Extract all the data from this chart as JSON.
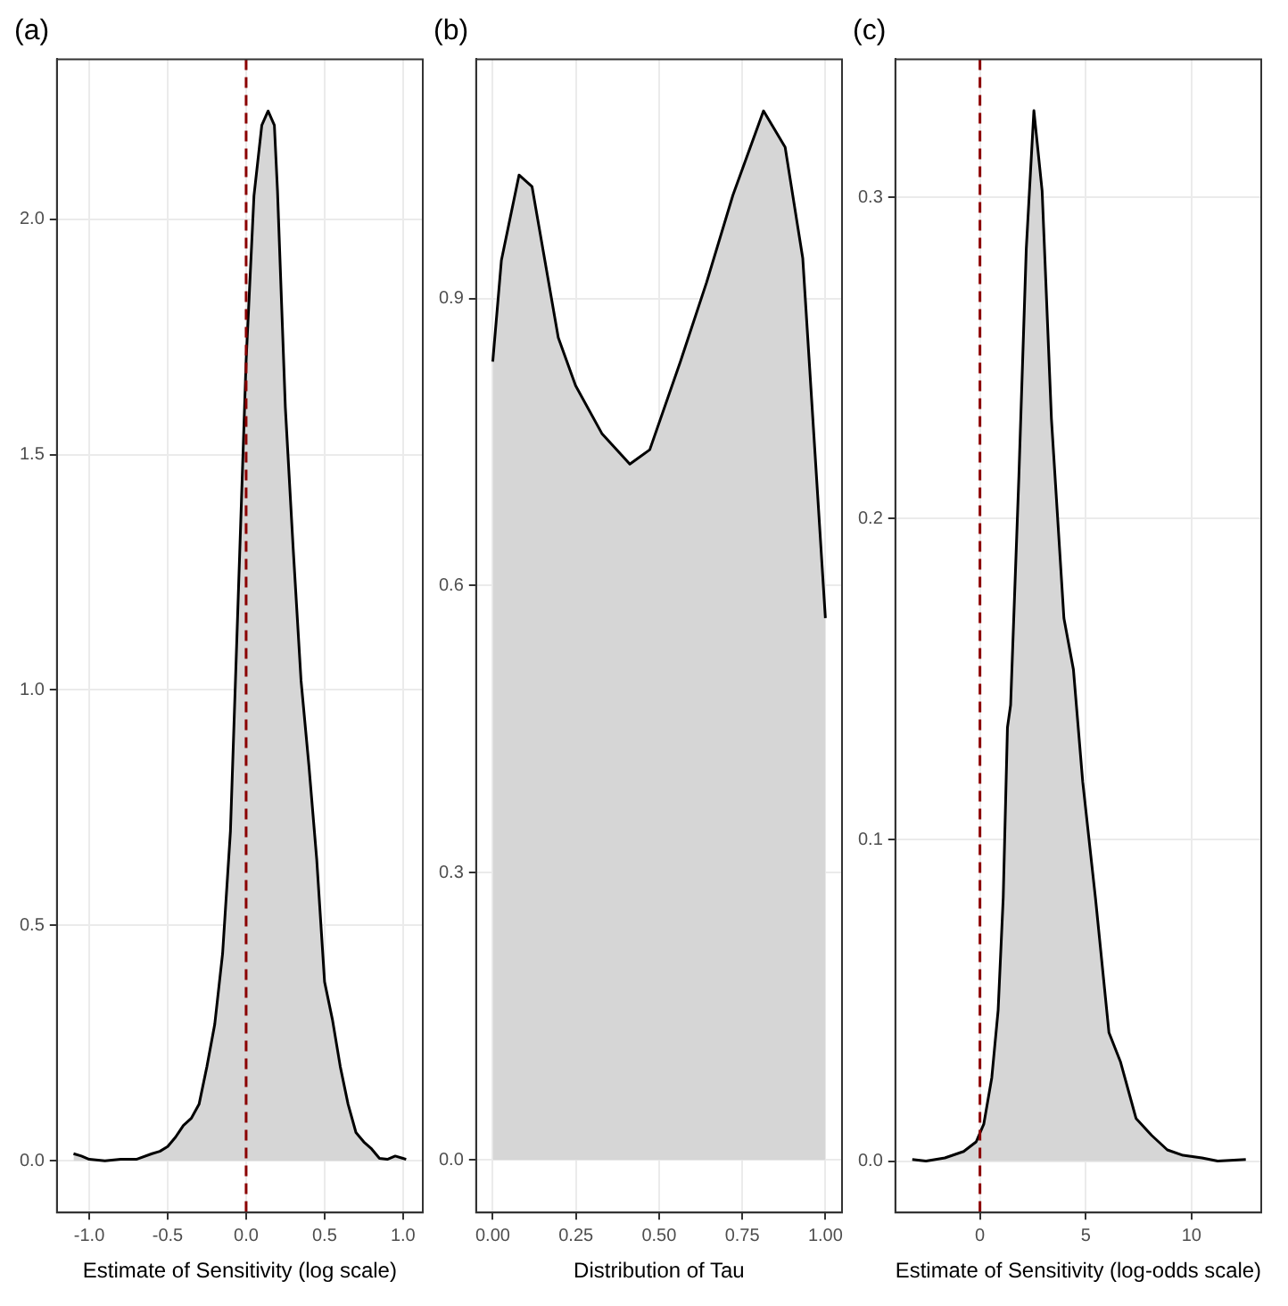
{
  "chart_data": [
    {
      "type": "area",
      "title": "(a)",
      "xlabel": "Estimate of Sensitivity (log scale)",
      "xlim": [
        -1.206,
        1.126
      ],
      "xticks": [
        {
          "value": -1,
          "label": "-1.0"
        },
        -0.5,
        {
          "value": 0,
          "label": "0.0"
        },
        0.5,
        {
          "value": 1,
          "label": "1.0"
        }
      ],
      "ylim": [
        -0.11,
        2.34
      ],
      "yticks": [
        {
          "value": 0,
          "label": "0.0"
        },
        0.5,
        {
          "value": 1,
          "label": "1.0"
        },
        1.5,
        {
          "value": 2,
          "label": "2.0"
        }
      ],
      "grid": true,
      "legend": false,
      "series": [
        {
          "color": "#d6d6d6",
          "x": [
            -1.1,
            -1.05,
            -1.0,
            -0.9,
            -0.8,
            -0.7,
            -0.6,
            -0.55,
            -0.5,
            -0.45,
            -0.4,
            -0.35,
            -0.3,
            -0.25,
            -0.2,
            -0.15,
            -0.1,
            -0.05,
            0,
            0.05,
            0.1,
            0.14,
            0.18,
            0.2,
            0.25,
            0.3,
            0.35,
            0.4,
            0.45,
            0.5,
            0.55,
            0.6,
            0.65,
            0.7,
            0.75,
            0.8,
            0.85,
            0.9,
            0.95,
            1.0,
            1.02
          ],
          "values": [
            0.015,
            0.01,
            0.003,
            0,
            0.003,
            0.003,
            0.015,
            0.02,
            0.03,
            0.05,
            0.075,
            0.09,
            0.12,
            0.2,
            0.29,
            0.44,
            0.7,
            1.2,
            1.7,
            2.05,
            2.2,
            2.23,
            2.2,
            2.06,
            1.6,
            1.3,
            1.02,
            0.84,
            0.64,
            0.38,
            0.3,
            0.2,
            0.12,
            0.06,
            0.04,
            0.025,
            0.005,
            0.003,
            0.01,
            0.005,
            0.003
          ]
        }
      ],
      "ref_lines": [
        {
          "axis": "x",
          "value": 0,
          "color": "#8b0000",
          "line_style": "dashed"
        }
      ]
    },
    {
      "type": "area",
      "title": "(b)",
      "xlabel": "Distribution of Tau",
      "xlim": [
        -0.05,
        1.05
      ],
      "xticks": [
        {
          "value": 0,
          "label": "0.00"
        },
        0.25,
        {
          "value": 0.5,
          "label": "0.50"
        },
        0.75,
        {
          "value": 1,
          "label": "1.00"
        }
      ],
      "ylim": [
        -0.055,
        1.15
      ],
      "yticks": [
        {
          "value": 0,
          "label": "0.0"
        },
        0.3,
        0.6,
        0.9
      ],
      "grid": true,
      "legend": false,
      "series": [
        {
          "color": "#d6d6d6",
          "x": [
            0,
            0.026,
            0.079,
            0.118,
            0.197,
            0.249,
            0.328,
            0.412,
            0.472,
            0.564,
            0.643,
            0.722,
            0.814,
            0.879,
            0.932,
            1.0
          ],
          "values": [
            0.834,
            0.94,
            1.029,
            1.017,
            0.859,
            0.809,
            0.759,
            0.727,
            0.742,
            0.834,
            0.917,
            1.008,
            1.096,
            1.058,
            0.942,
            0.566
          ]
        }
      ]
    },
    {
      "type": "area",
      "title": "(c)",
      "xlabel": "Estimate of Sensitivity (log-odds scale)",
      "xlim": [
        -4.0,
        13.3
      ],
      "xticks": [
        0,
        5,
        10
      ],
      "ylim": [
        -0.016,
        0.343
      ],
      "yticks": [
        {
          "value": 0,
          "label": "0.0"
        },
        0.1,
        0.2,
        0.3
      ],
      "grid": true,
      "legend": false,
      "series": [
        {
          "color": "#d6d6d6",
          "x": [
            -3.2,
            -2.55,
            -1.66,
            -0.77,
            -0.18,
            0.18,
            0.56,
            0.86,
            1.1,
            1.3,
            1.45,
            1.84,
            2.19,
            2.55,
            2.94,
            3.38,
            3.97,
            4.42,
            4.86,
            5.46,
            6.1,
            6.64,
            7.38,
            8.12,
            8.86,
            9.6,
            10.5,
            11.24,
            12.57
          ],
          "values": [
            0.0005,
            0,
            0.001,
            0.003,
            0.006,
            0.0115,
            0.026,
            0.047,
            0.082,
            0.135,
            0.142,
            0.213,
            0.284,
            0.327,
            0.302,
            0.231,
            0.169,
            0.153,
            0.118,
            0.082,
            0.04,
            0.031,
            0.0133,
            0.008,
            0.0035,
            0.0018,
            0.001,
            0,
            0.0005
          ]
        }
      ],
      "ref_lines": [
        {
          "axis": "x",
          "value": 0,
          "color": "#8b0000",
          "line_style": "dashed"
        }
      ]
    }
  ]
}
